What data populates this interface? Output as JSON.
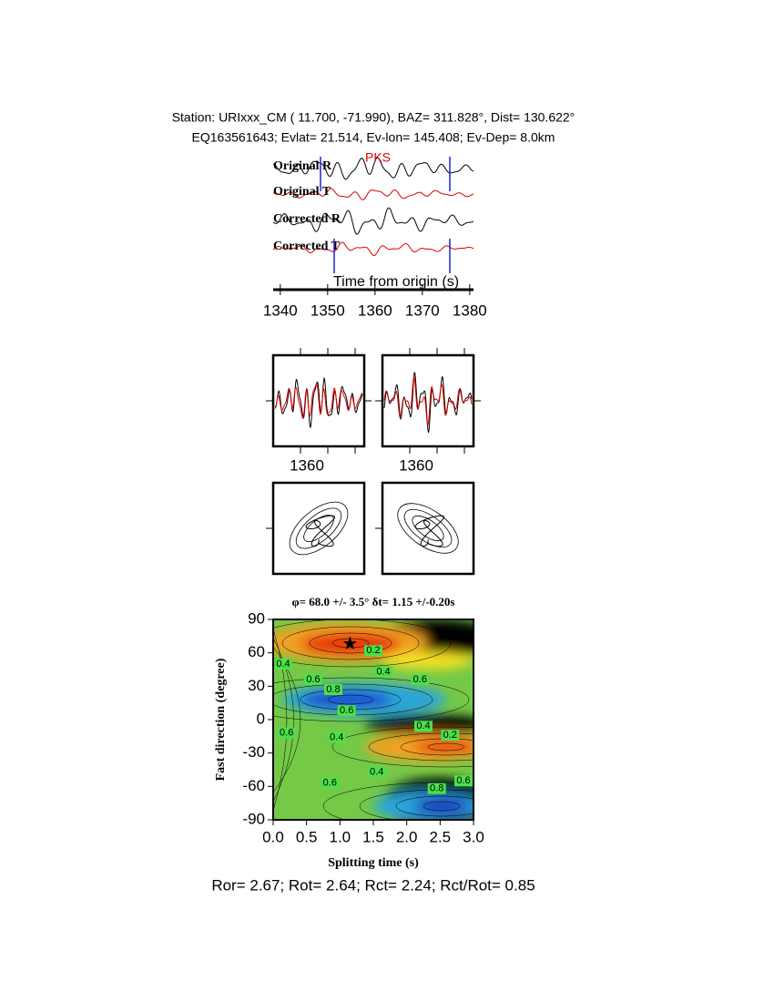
{
  "header": {
    "station": "Station: URIxxx_CM (  11.700,  -71.990), BAZ=  311.828°, Dist=  130.622°",
    "event": "EQ163561643; Evlat=  21.514, Ev-lon= 145.408; Ev-Dep=  8.0km"
  },
  "chart_data": [
    {
      "type": "seismogram",
      "traces": [
        "Original R",
        "Original T",
        "Corrected R",
        "Corrected T"
      ],
      "phase": "PKS",
      "xlabel": "Time from origin (s)",
      "xlim": [
        1338.5,
        1380.8
      ],
      "xticks": [
        1340,
        1350,
        1360,
        1370,
        1380
      ]
    },
    {
      "type": "waveform-comparison",
      "xticks": [
        1360,
        1360
      ]
    },
    {
      "type": "particle-motion"
    },
    {
      "type": "contour",
      "title": "φ= 68.0 +/- 3.5° δt= 1.15 +/-0.20s",
      "xlabel": "Splitting time (s)",
      "ylabel": "Fast direction (degree)",
      "xlim": [
        0,
        3
      ],
      "ylim": [
        -90,
        90
      ],
      "xticks": [
        {
          "value": 0,
          "label": "0.0"
        },
        {
          "value": 0.5,
          "label": "0.5"
        },
        {
          "value": 1,
          "label": "1.0"
        },
        {
          "value": 1.5,
          "label": "1.5"
        },
        {
          "value": 2,
          "label": "2.0"
        },
        {
          "value": 2.5,
          "label": "2.5"
        },
        {
          "value": 3,
          "label": "3.0"
        }
      ],
      "yticks": [
        -90,
        -60,
        -30,
        0,
        30,
        60,
        90
      ],
      "best": {
        "x": 1.15,
        "y": 68
      },
      "contour_labels": [
        {
          "text": "0.2",
          "x": 1.5,
          "y": 62
        },
        {
          "text": "0.4",
          "x": 0.15,
          "y": 50
        },
        {
          "text": "0.6",
          "x": 0.6,
          "y": 36
        },
        {
          "text": "0.4",
          "x": 1.65,
          "y": 43
        },
        {
          "text": "0.6",
          "x": 2.2,
          "y": 36
        },
        {
          "text": "0.8",
          "x": 0.9,
          "y": 27
        },
        {
          "text": "0.6",
          "x": 1.1,
          "y": 8
        },
        {
          "text": "0.6",
          "x": 0.2,
          "y": -12
        },
        {
          "text": "0.4",
          "x": 0.95,
          "y": -16
        },
        {
          "text": "0.4",
          "x": 2.25,
          "y": -6
        },
        {
          "text": "0.2",
          "x": 2.65,
          "y": -14
        },
        {
          "text": "0.4",
          "x": 1.55,
          "y": -47
        },
        {
          "text": "0.6",
          "x": 0.85,
          "y": -57
        },
        {
          "text": "0.8",
          "x": 2.45,
          "y": -62
        },
        {
          "text": "0.6",
          "x": 2.85,
          "y": -55
        }
      ]
    }
  ],
  "footer": "Ror= 2.67; Rot= 2.64; Rct= 2.24; Rct/Rot= 0.85"
}
